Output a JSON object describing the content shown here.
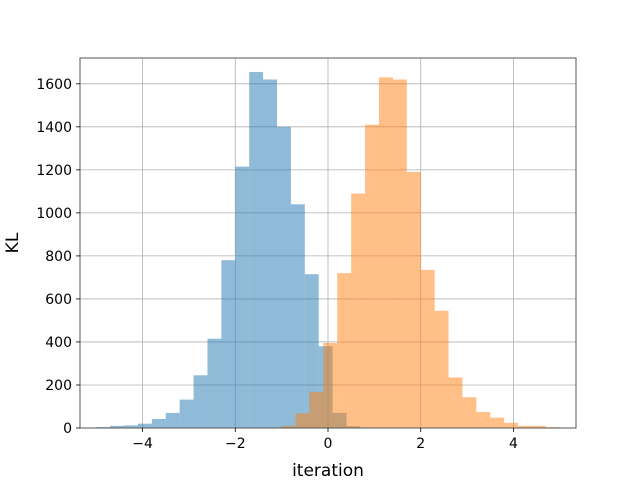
{
  "chart_data": {
    "type": "bar",
    "subtype": "histogram-overlay",
    "title": "",
    "xlabel": "iteration",
    "ylabel": "KL",
    "xlim": [
      -5.35,
      5.35
    ],
    "ylim": [
      0,
      1720
    ],
    "xticks": [
      -4,
      -2,
      0,
      2,
      4
    ],
    "xtick_labels": [
      "−4",
      "−2",
      "0",
      "2",
      "4"
    ],
    "yticks": [
      0,
      200,
      400,
      600,
      800,
      1000,
      1200,
      1400,
      1600
    ],
    "ytick_labels": [
      "0",
      "200",
      "400",
      "600",
      "800",
      "1000",
      "1200",
      "1400",
      "1600"
    ],
    "grid": true,
    "legend": false,
    "series": [
      {
        "color": "#1f77b4",
        "alpha": 0.5,
        "bin_edges": [
          -5.0,
          -4.7,
          -4.4,
          -4.1,
          -3.8,
          -3.5,
          -3.2,
          -2.9,
          -2.6,
          -2.3,
          -2.0,
          -1.7,
          -1.4,
          -1.1,
          -0.8,
          -0.5,
          -0.2,
          0.1,
          0.4,
          0.7
        ],
        "counts": [
          4,
          10,
          12,
          20,
          42,
          70,
          132,
          245,
          415,
          780,
          1215,
          1655,
          1620,
          1400,
          1040,
          715,
          380,
          70,
          8
        ]
      },
      {
        "color": "#ff7f0e",
        "alpha": 0.5,
        "bin_edges": [
          -1.0,
          -0.7,
          -0.4,
          -0.1,
          0.2,
          0.5,
          0.8,
          1.1,
          1.4,
          1.7,
          2.0,
          2.3,
          2.6,
          2.9,
          3.2,
          3.5,
          3.8,
          4.1,
          4.4,
          4.7,
          5.0
        ],
        "counts": [
          10,
          68,
          168,
          395,
          720,
          1090,
          1410,
          1630,
          1620,
          1190,
          735,
          545,
          235,
          143,
          74,
          48,
          24,
          10,
          10,
          4
        ]
      }
    ]
  }
}
